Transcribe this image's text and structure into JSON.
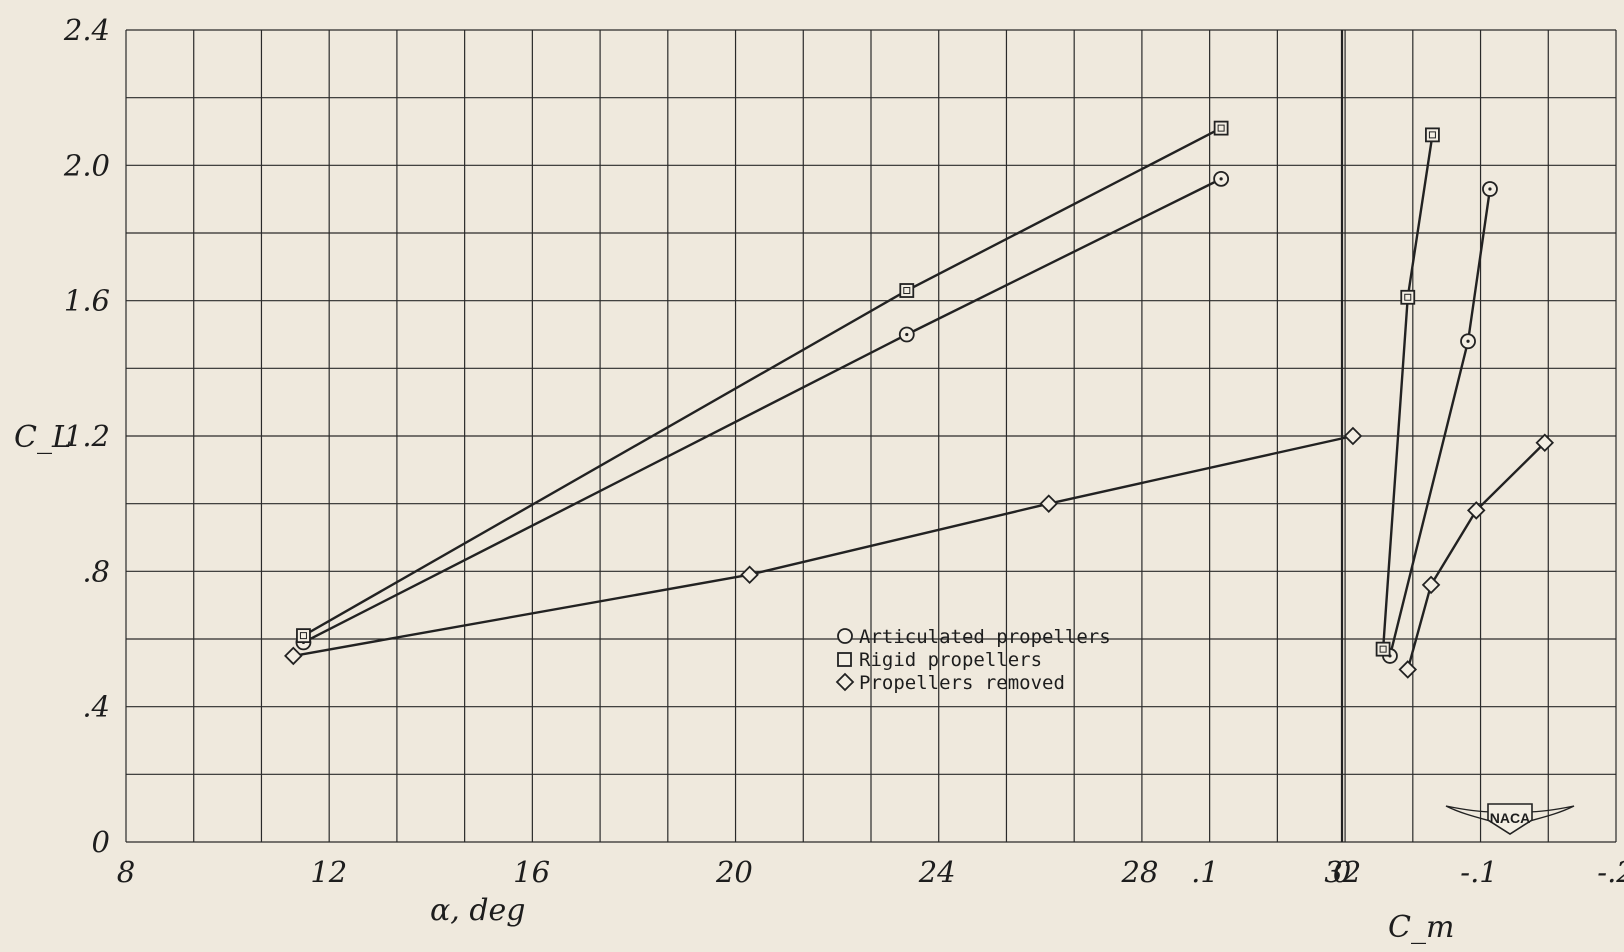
{
  "chart_data": [
    {
      "type": "line",
      "xlabel": "α, deg",
      "ylabel": "C_L",
      "xlim": [
        8,
        48
      ],
      "ylim": [
        0,
        2.4
      ],
      "x_ticks": [
        "8",
        "12",
        "16",
        "20",
        "24",
        "28",
        "32"
      ],
      "y_ticks": [
        "0",
        ".4",
        ".8",
        "1.2",
        "1.6",
        "2.0",
        "2.4"
      ],
      "grid": true,
      "series": [
        {
          "name": "Articulated propellers",
          "marker": "circle",
          "x": [
            11.5,
            23.4,
            29.6
          ],
          "y": [
            0.59,
            1.5,
            1.96
          ]
        },
        {
          "name": "Rigid propellers",
          "marker": "square",
          "x": [
            11.5,
            23.4,
            29.6
          ],
          "y": [
            0.61,
            1.63,
            2.11
          ]
        },
        {
          "name": "Propellers removed",
          "marker": "diamond",
          "x": [
            11.3,
            20.3,
            26.2,
            32.2
          ],
          "y": [
            0.55,
            0.79,
            1.0,
            1.2
          ]
        }
      ]
    },
    {
      "type": "line",
      "xlabel": "C_m",
      "ylabel": "C_L",
      "xlim": [
        0.2,
        -0.2
      ],
      "ylim": [
        0,
        2.4
      ],
      "x_ticks": [
        ".1",
        "0",
        "-.1",
        "-.2"
      ],
      "grid": true,
      "series": [
        {
          "name": "Articulated propellers",
          "marker": "circle",
          "x": [
            -0.035,
            -0.092,
            -0.108
          ],
          "y": [
            0.55,
            1.48,
            1.93
          ]
        },
        {
          "name": "Rigid propellers",
          "marker": "square",
          "x": [
            -0.03,
            -0.048,
            -0.066
          ],
          "y": [
            0.57,
            1.61,
            2.09
          ]
        },
        {
          "name": "Propellers removed",
          "marker": "diamond",
          "x": [
            -0.048,
            -0.065,
            -0.098,
            -0.148
          ],
          "y": [
            0.51,
            0.76,
            0.98,
            1.18
          ]
        }
      ]
    }
  ],
  "legend": {
    "items": [
      {
        "symbol": "circle",
        "label": "Articulated propellers"
      },
      {
        "symbol": "square",
        "label": "Rigid propellers"
      },
      {
        "symbol": "diamond",
        "label": "Propellers removed"
      }
    ]
  },
  "logo": {
    "text": "NACA"
  }
}
